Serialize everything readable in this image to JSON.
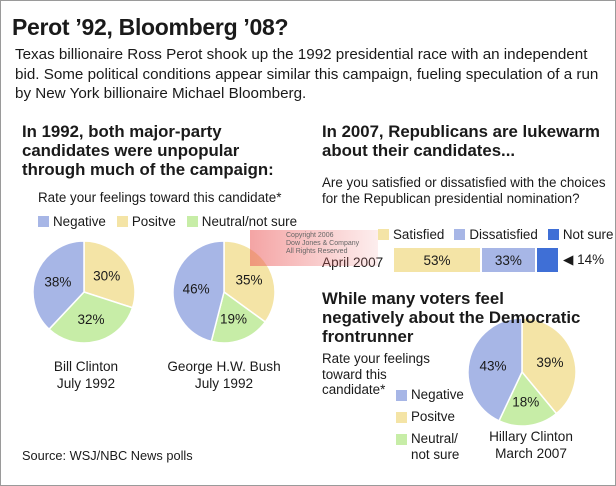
{
  "title": "Perot ’92, Bloomberg ’08?",
  "intro": "Texas billionaire Ross Perot shook up the 1992 presidential race with an independent bid. Some political conditions appear similar this campaign, fueling speculation of a run by New York billionaire Michael Bloomberg.",
  "colors": {
    "negative": "#a7b6e6",
    "positive": "#f4e4a6",
    "neutral": "#c7eda7",
    "not_sure": "#3f6fd6"
  },
  "left": {
    "heading": "In 1992, both major-party candidates were unpopular through much of the campaign:",
    "question": "Rate your feelings toward this candidate*",
    "legend": {
      "negative": "Negative",
      "positive": "Positve",
      "neutral": "Neutral/not sure"
    },
    "pie1": {
      "name": "Bill Clinton",
      "date": "July 1992"
    },
    "pie2": {
      "name": "George H.W. Bush",
      "date": "July 1992"
    }
  },
  "right": {
    "heading": "In 2007, Republicans are lukewarm about their candidates...",
    "question": "Are you satisfied or dissatisfied with the choices for the Republican presidential nomination?",
    "legend": {
      "satisfied": "Satisfied",
      "dissatisfied": "Dissatisfied",
      "not_sure": "Not sure"
    },
    "row_label": "April 2007",
    "heading2": "While many voters feel negatively about the Democratic frontrunner",
    "question2": "Rate your feelings toward this candidate*",
    "legend2": {
      "negative": "Negative",
      "positive": "Positve",
      "neutral": "Neutral/ not sure"
    },
    "pie3": {
      "name": "Hillary Clinton",
      "date": "March 2007"
    }
  },
  "watermark": {
    "line1": "Copyright 2006",
    "line2": "Dow Jones & Company",
    "line3": "All Rights Reserved"
  },
  "source": "Source: WSJ/NBC News polls",
  "chart_data": [
    {
      "type": "pie",
      "title": "Bill Clinton July 1992",
      "labels": [
        "Negative",
        "Positve",
        "Neutral/not sure"
      ],
      "values": [
        38,
        30,
        32
      ],
      "value_labels": [
        "38%",
        "30%",
        "32%"
      ]
    },
    {
      "type": "pie",
      "title": "George H.W. Bush July 1992",
      "labels": [
        "Negative",
        "Positve",
        "Neutral/not sure"
      ],
      "values": [
        46,
        35,
        19
      ],
      "value_labels": [
        "46%",
        "35%",
        "19%"
      ]
    },
    {
      "type": "bar",
      "orientation": "horizontal-stacked",
      "categories": [
        "April 2007"
      ],
      "series": [
        {
          "name": "Satisfied",
          "values": [
            53
          ],
          "label": "53%"
        },
        {
          "name": "Dissatisfied",
          "values": [
            33
          ],
          "label": "33%"
        },
        {
          "name": "Not sure",
          "values": [
            14
          ],
          "label": "14%"
        }
      ]
    },
    {
      "type": "pie",
      "title": "Hillary Clinton March 2007",
      "labels": [
        "Negative",
        "Positve",
        "Neutral/ not sure"
      ],
      "values": [
        43,
        39,
        18
      ],
      "value_labels": [
        "43%",
        "39%",
        "18%"
      ]
    }
  ]
}
